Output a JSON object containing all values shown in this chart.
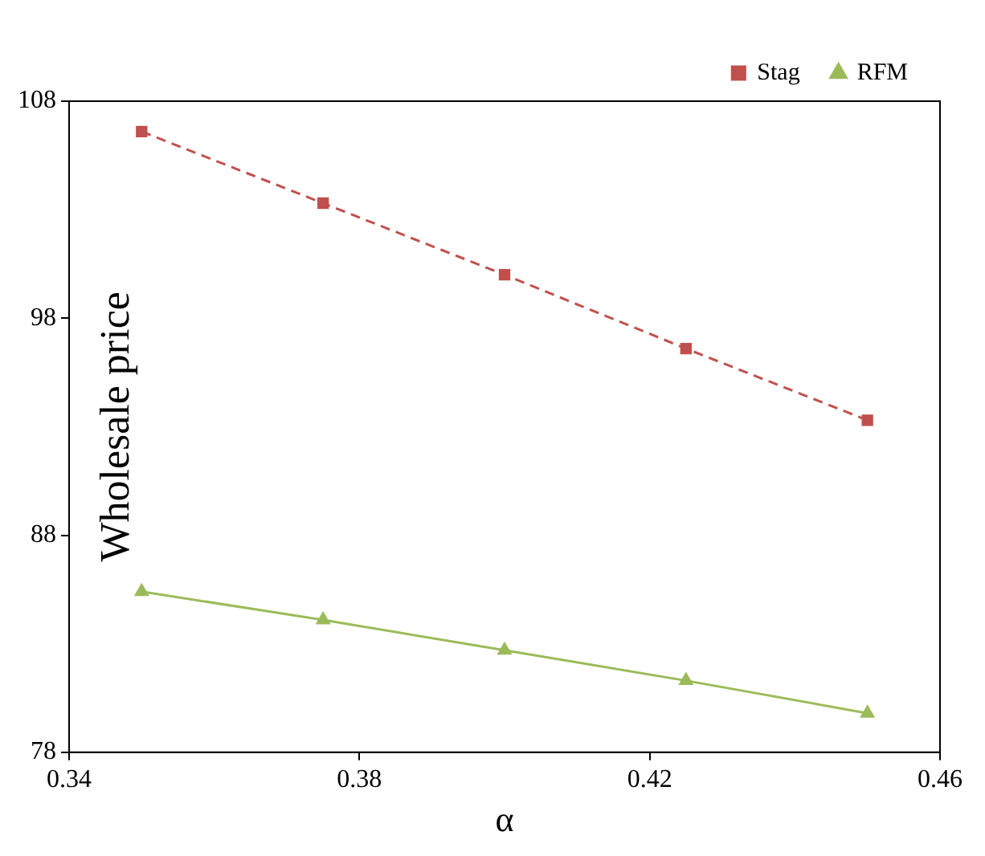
{
  "chart_data": {
    "type": "line",
    "xlabel": "α",
    "ylabel": "Wholesale price",
    "x": [
      0.35,
      0.375,
      0.4,
      0.425,
      0.45
    ],
    "series": [
      {
        "name": "Stag",
        "color": "#c0504d",
        "values": [
          106.6,
          103.3,
          100.0,
          96.6,
          93.3
        ],
        "marker": "square",
        "line_style": "dashed"
      },
      {
        "name": "RFM",
        "color": "#9bbb59",
        "values": [
          85.4,
          84.1,
          82.7,
          81.3,
          79.8
        ],
        "marker": "triangle",
        "line_style": "solid"
      }
    ],
    "xlim": [
      0.34,
      0.46
    ],
    "xticks": [
      0.34,
      0.38,
      0.42,
      0.46
    ],
    "ylim": [
      78,
      108
    ],
    "yticks": [
      78,
      88,
      98,
      108
    ],
    "grid": false,
    "legend": "top right"
  }
}
